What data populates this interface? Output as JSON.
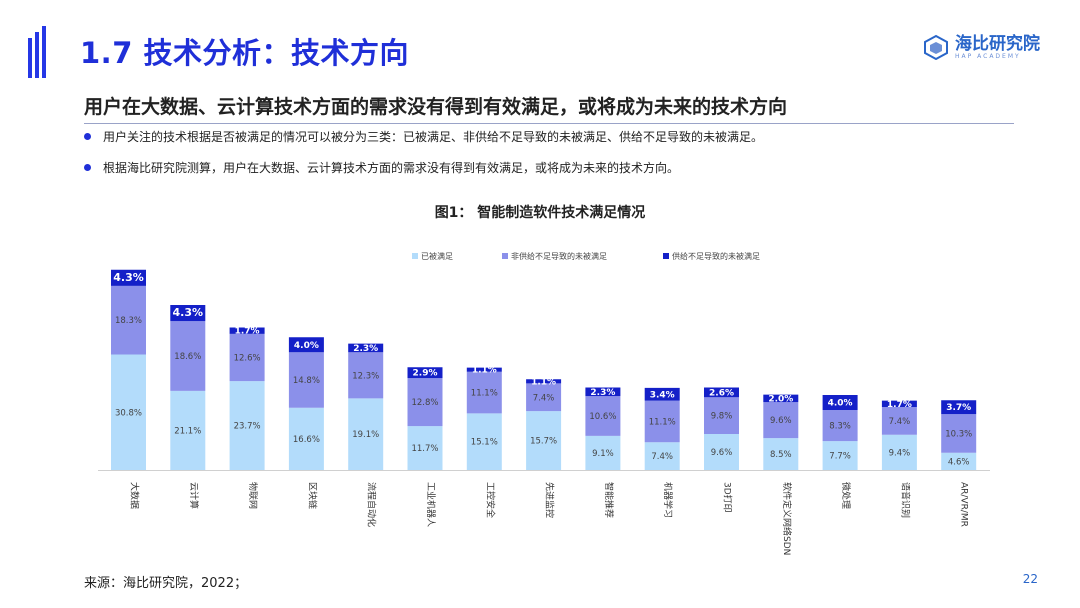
{
  "slide": {
    "title": "1.7 技术分析：技术方向",
    "headline": "用户在大数据、云计算技术方面的需求没有得到有效满足，或将成为未来的技术方向",
    "bullets": [
      "用户关注的技术根据是否被满足的情况可以被分为三类：已被满足、非供给不足导致的未被满足、供给不足导致的未被满足。",
      "根据海比研究院测算，用户在大数据、云计算技术方面的需求没有得到有效满足，或将成为未来的技术方向。"
    ],
    "source": "来源：海比研究院，2022；",
    "page_number": "22",
    "logo": {
      "name": "海比研究院",
      "sub": "HAP ACADEMY"
    }
  },
  "colors": {
    "accent": "#1f2fd8",
    "satisfied": "#b3dcfb",
    "unsatisfied_non_supply": "#8b90ea",
    "unsatisfied_supply": "#1420c8"
  },
  "chart_data": {
    "type": "bar",
    "stacked": true,
    "title": "图1：  智能制造软件技术满足情况",
    "categories": [
      "大数据",
      "云计算",
      "物联网",
      "区块链",
      "流程自动化",
      "工业机器人",
      "工控安全",
      "先进监控",
      "智能推荐",
      "机器学习",
      "3D打印",
      "软件定义网络SDN",
      "微处理",
      "语音识别",
      "AR/VR/MR"
    ],
    "series": [
      {
        "name": "已被满足",
        "color": "#b3dcfb",
        "values": [
          30.8,
          21.1,
          23.7,
          16.6,
          19.1,
          11.7,
          15.1,
          15.7,
          9.1,
          7.4,
          9.6,
          8.5,
          7.7,
          9.4,
          4.6
        ]
      },
      {
        "name": "非供给不足导致的未被满足",
        "color": "#8b90ea",
        "values": [
          18.3,
          18.6,
          12.6,
          14.8,
          12.3,
          12.8,
          11.1,
          7.4,
          10.6,
          11.1,
          9.8,
          9.6,
          8.3,
          7.4,
          10.3
        ]
      },
      {
        "name": "供给不足导致的未被满足",
        "color": "#1420c8",
        "values": [
          4.3,
          4.3,
          1.7,
          4.0,
          2.3,
          2.9,
          1.1,
          1.1,
          2.3,
          3.4,
          2.6,
          2.0,
          4.0,
          1.7,
          3.7
        ]
      }
    ],
    "legend_position": "top",
    "grid": false
  }
}
